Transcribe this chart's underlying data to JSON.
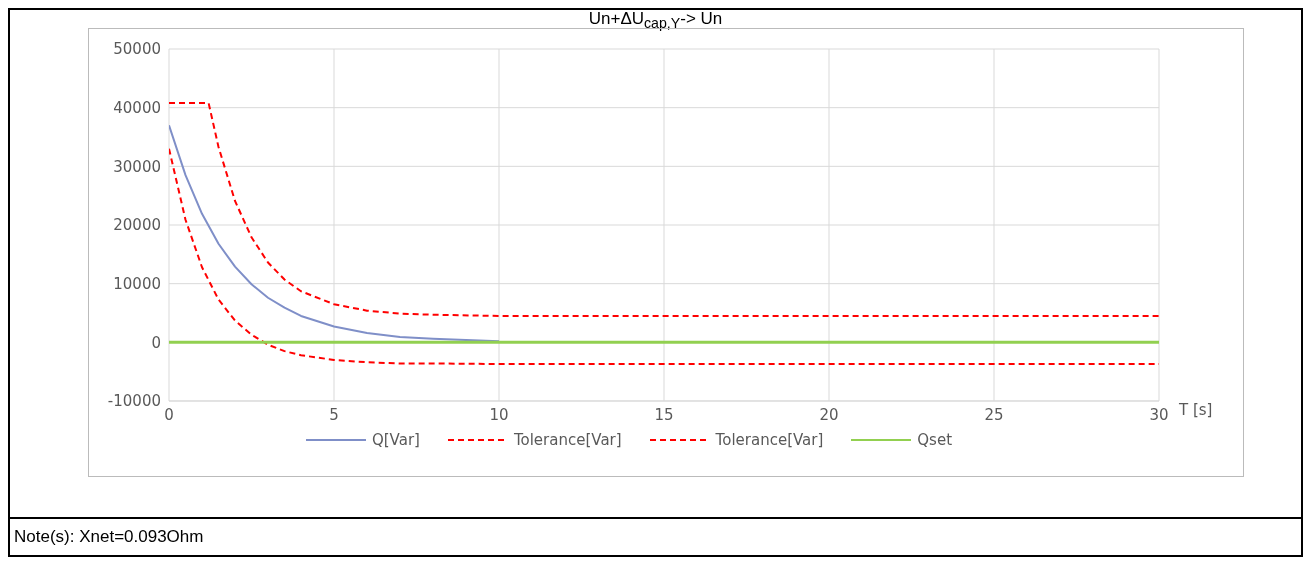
{
  "chart_data": {
    "type": "line",
    "title": "Un+ΔU$_{cap,Y}$-> Un",
    "xlabel": "T [s]",
    "annotations": [
      "Note(s): Xnet=0.093Ohm"
    ],
    "xlim": [
      0,
      30
    ],
    "xticks": [
      0,
      5,
      10,
      15,
      20,
      25,
      30
    ],
    "ylim": [
      -10000,
      50000
    ],
    "yticks": [
      -10000,
      0,
      10000,
      20000,
      30000,
      40000,
      50000
    ],
    "grid": true,
    "legend": "bottom",
    "marker": "none",
    "series": [
      {
        "name": "Q[Var]",
        "color": "#7f8fc8",
        "line_style": "solid",
        "x": [
          0,
          0.5,
          1,
          1.5,
          2,
          2.5,
          3,
          3.5,
          4,
          5,
          6,
          7,
          8,
          10
        ],
        "values": [
          37000,
          28500,
          21900,
          16800,
          12900,
          9900,
          7600,
          5900,
          4500,
          2700,
          1600,
          900,
          600,
          200
        ]
      },
      {
        "name": "Tolerance[Var]",
        "color": "#ff0000",
        "line_style": "dashed",
        "x": [
          0,
          1.2,
          1.5,
          2,
          2.5,
          3,
          3.5,
          4,
          5,
          6,
          7,
          8,
          10,
          15,
          30
        ],
        "values": [
          40800,
          40800,
          33300,
          24100,
          17900,
          13600,
          10700,
          8700,
          6500,
          5400,
          4900,
          4700,
          4500,
          4500,
          4500
        ]
      },
      {
        "name": "Tolerance[Var]",
        "color": "#ff0000",
        "line_style": "dashed",
        "x": [
          0,
          0.5,
          1,
          1.5,
          2,
          2.5,
          3,
          3.5,
          4,
          5,
          6,
          7,
          8,
          10,
          15,
          30
        ],
        "values": [
          33000,
          20900,
          12800,
          7300,
          3700,
          1300,
          -400,
          -1500,
          -2200,
          -3000,
          -3400,
          -3600,
          -3600,
          -3700,
          -3700,
          -3700
        ]
      },
      {
        "name": "Qset",
        "color": "#92d050",
        "line_style": "solid",
        "x": [
          0,
          30
        ],
        "values": [
          0,
          0
        ]
      }
    ]
  }
}
